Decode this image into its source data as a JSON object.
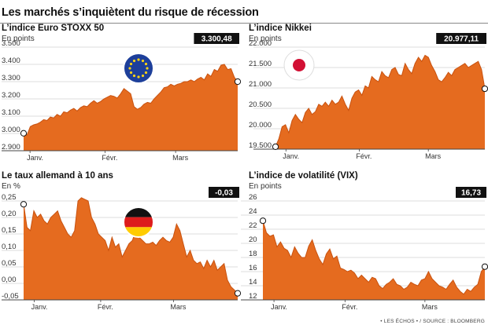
{
  "page": {
    "title": "Les marchés s’inquiètent du risque de récession",
    "source": "• LES ÉCHOS • / SOURCE : BLOOMBERG"
  },
  "colors": {
    "area": "#e56b1f",
    "line": "#c85210",
    "grid": "#d0d0d0",
    "axis": "#444444",
    "box": "#111111"
  },
  "chart_data": [
    {
      "type": "area",
      "title": "L’indice Euro STOXX 50",
      "unit": "En points",
      "last_value_label": "3.300,48",
      "y_ticks": [
        "2.900",
        "3.000",
        "3.100",
        "3.200",
        "3.300",
        "3.400",
        "3.500"
      ],
      "ylim": [
        2900,
        3500
      ],
      "months": [
        "Janv.",
        "Févr.",
        "Mars"
      ],
      "month_positions": [
        0.03,
        0.38,
        0.71
      ],
      "icon": "eu-flag-icon",
      "y": [
        3001,
        2990,
        3040,
        3050,
        3055,
        3065,
        3080,
        3075,
        3095,
        3090,
        3110,
        3100,
        3125,
        3120,
        3135,
        3145,
        3130,
        3150,
        3160,
        3155,
        3175,
        3190,
        3175,
        3185,
        3200,
        3210,
        3220,
        3215,
        3205,
        3230,
        3260,
        3245,
        3230,
        3155,
        3140,
        3150,
        3170,
        3180,
        3175,
        3200,
        3220,
        3240,
        3265,
        3270,
        3285,
        3275,
        3285,
        3290,
        3300,
        3300,
        3310,
        3300,
        3315,
        3325,
        3310,
        3345,
        3330,
        3370,
        3360,
        3395,
        3400,
        3370,
        3375,
        3325,
        3300
      ]
    },
    {
      "type": "area",
      "title": "L’indice Nikkei",
      "unit": "En points",
      "last_value_label": "20.977,11",
      "y_ticks": [
        "19.500",
        "20.000",
        "20.500",
        "21.000",
        "21.500",
        "22.000"
      ],
      "ylim": [
        19500,
        22000
      ],
      "months": [
        "Janv.",
        "Févr.",
        "Mars"
      ],
      "month_positions": [
        0.05,
        0.4,
        0.73
      ],
      "icon": "japan-flag-icon",
      "y": [
        19560,
        19750,
        20050,
        20100,
        19900,
        20200,
        20350,
        20230,
        20150,
        20400,
        20500,
        20350,
        20420,
        20600,
        20550,
        20650,
        20550,
        20700,
        20600,
        20650,
        20800,
        20600,
        20450,
        20750,
        20900,
        20950,
        20820,
        21050,
        21000,
        21280,
        21200,
        21150,
        21400,
        21300,
        21250,
        21450,
        21500,
        21330,
        21300,
        21600,
        21450,
        21350,
        21600,
        21750,
        21650,
        21800,
        21750,
        21550,
        21400,
        21200,
        21150,
        21250,
        21380,
        21300,
        21450,
        21500,
        21550,
        21600,
        21500,
        21550,
        21600,
        21650,
        21450,
        20980
      ]
    },
    {
      "type": "area",
      "title": "Le taux allemand à 10 ans",
      "unit": "En %",
      "last_value_label": "-0,03",
      "y_ticks": [
        "-0,05",
        "0,00",
        "0,05",
        "0,10",
        "0,15",
        "0,20",
        "0,25"
      ],
      "ylim": [
        -0.05,
        0.25
      ],
      "months": [
        "Janv.",
        "Févr.",
        "Mars"
      ],
      "month_positions": [
        0.05,
        0.36,
        0.7
      ],
      "icon": "germany-flag-icon",
      "y": [
        0.24,
        0.17,
        0.16,
        0.22,
        0.2,
        0.21,
        0.19,
        0.18,
        0.2,
        0.21,
        0.22,
        0.19,
        0.17,
        0.15,
        0.14,
        0.16,
        0.25,
        0.26,
        0.255,
        0.25,
        0.2,
        0.18,
        0.15,
        0.14,
        0.13,
        0.1,
        0.14,
        0.11,
        0.12,
        0.08,
        0.1,
        0.12,
        0.13,
        0.16,
        0.14,
        0.13,
        0.12,
        0.12,
        0.125,
        0.115,
        0.13,
        0.14,
        0.13,
        0.125,
        0.14,
        0.18,
        0.16,
        0.12,
        0.08,
        0.1,
        0.07,
        0.06,
        0.065,
        0.045,
        0.07,
        0.05,
        0.07,
        0.04,
        0.05,
        0.06,
        0.01,
        -0.01,
        -0.02,
        -0.03
      ]
    },
    {
      "type": "area",
      "title": "L’indice de volatilité (VIX)",
      "unit": "En points",
      "last_value_label": "16,73",
      "y_ticks": [
        "12",
        "14",
        "16",
        "18",
        "20",
        "22",
        "24",
        "26"
      ],
      "ylim": [
        12,
        26
      ],
      "months": [
        "Janv.",
        "Févr.",
        "Mars"
      ],
      "month_positions": [
        0.05,
        0.37,
        0.73
      ],
      "icon": "",
      "y": [
        23.2,
        21.5,
        21.0,
        21.2,
        19.5,
        20.2,
        19.3,
        19.0,
        18.0,
        19.5,
        18.6,
        18.0,
        18.0,
        19.6,
        20.5,
        19.0,
        17.8,
        17.0,
        18.5,
        19.2,
        17.8,
        18.2,
        16.5,
        16.3,
        16.0,
        16.2,
        15.8,
        15.0,
        15.5,
        15.0,
        14.5,
        15.2,
        15.0,
        14.0,
        13.6,
        14.2,
        14.5,
        15.0,
        14.2,
        14.0,
        13.5,
        13.8,
        14.5,
        14.2,
        14.0,
        14.8,
        15.0,
        16.0,
        15.0,
        14.5,
        14.0,
        13.8,
        13.5,
        14.2,
        14.8,
        13.8,
        13.2,
        12.8,
        13.5,
        13.2,
        13.8,
        14.2,
        16.0,
        16.7
      ]
    }
  ]
}
